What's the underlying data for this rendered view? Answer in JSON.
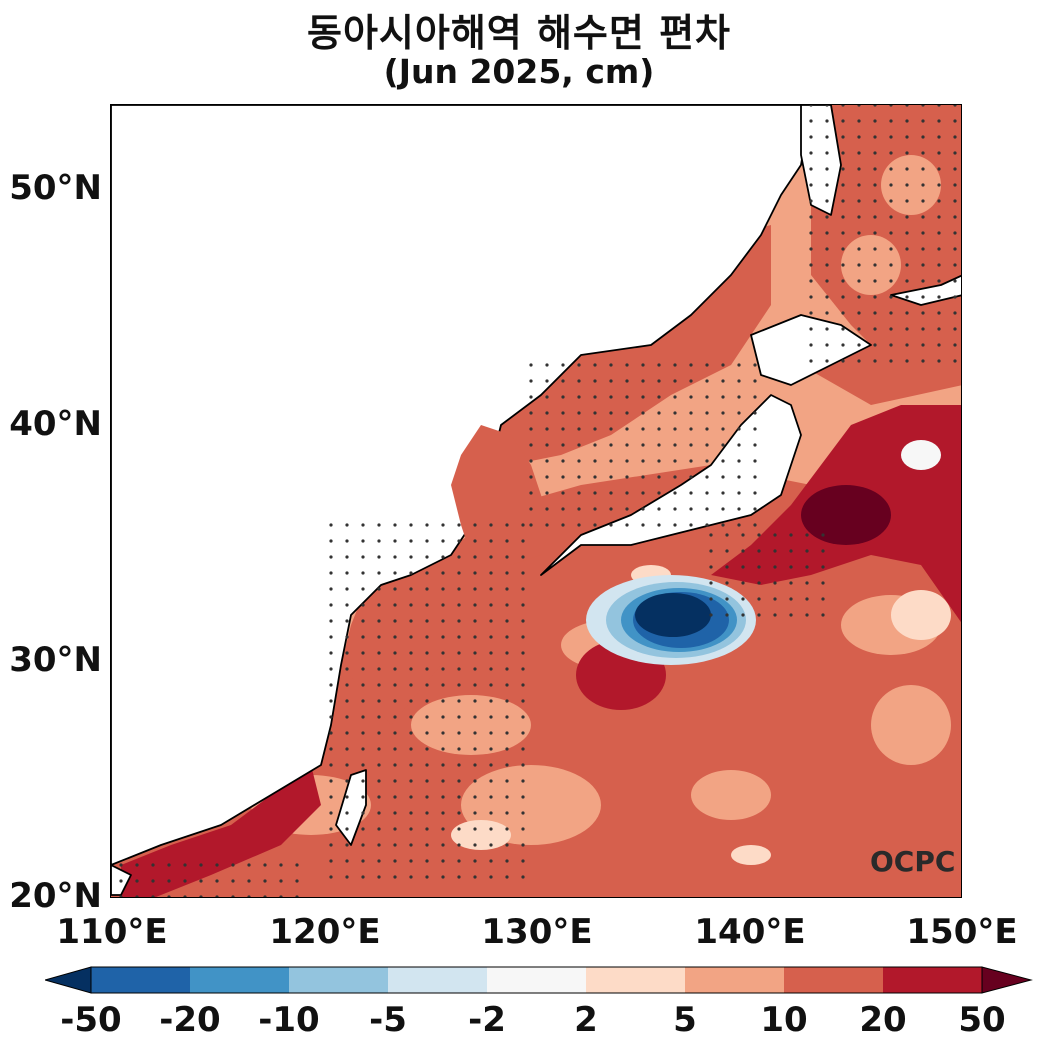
{
  "title": {
    "line1": "동아시아해역 해수면 편차",
    "line2": "(Jun 2025, cm)"
  },
  "axes": {
    "x_ticks": [
      "110°E",
      "120°E",
      "130°E",
      "140°E",
      "150°E"
    ],
    "y_ticks": [
      "50°N",
      "40°N",
      "30°N",
      "20°N"
    ],
    "lon_range": [
      110,
      150
    ],
    "lat_range": [
      20,
      53.5
    ]
  },
  "colorbar": {
    "labels": [
      "-50",
      "-20",
      "-10",
      "-5",
      "-2",
      "2",
      "5",
      "10",
      "20",
      "50"
    ],
    "colors": [
      "#1f63a8",
      "#4193c6",
      "#93c4de",
      "#d2e5f0",
      "#f7f7f7",
      "#fddbc7",
      "#f2a484",
      "#d6604d",
      "#b2182b"
    ],
    "under_color": "#053061",
    "over_color": "#67001f"
  },
  "logo": "OCPC",
  "colors": {
    "land": "#ffffff",
    "coast": "#000000",
    "stipple": "#333333"
  }
}
